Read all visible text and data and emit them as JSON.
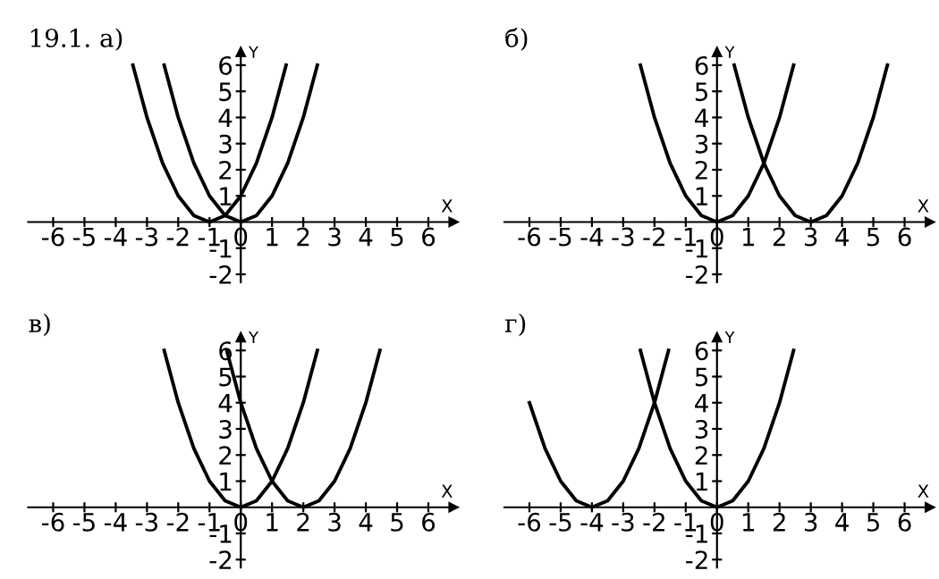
{
  "chart_data": [
    {
      "type": "line",
      "title": "19.1. а)",
      "xlabel": "X",
      "ylabel": "Y",
      "xlim": [
        -6.8,
        6.8
      ],
      "ylim": [
        -2.3,
        6.5
      ],
      "xticks": [
        -6,
        -5,
        -4,
        -3,
        -2,
        -1,
        0,
        1,
        2,
        3,
        4,
        5,
        6
      ],
      "yticks": [
        -2,
        -1,
        1,
        2,
        3,
        4,
        5,
        6
      ],
      "grid": false,
      "legend": false,
      "series": [
        {
          "color": "#000000",
          "x": [
            -3.45,
            -3,
            -2.5,
            -2,
            -1.5,
            -1,
            -0.5,
            0,
            0.5,
            1,
            1.45
          ],
          "values": [
            6.0,
            4,
            2.25,
            1,
            0.25,
            0,
            0.25,
            1,
            2.25,
            4,
            6.0
          ]
        },
        {
          "color": "#000000",
          "x": [
            -2.45,
            -2,
            -1.5,
            -1,
            -0.5,
            0,
            0.5,
            1,
            1.5,
            2,
            2.45
          ],
          "values": [
            6.0,
            4,
            2.25,
            1,
            0.25,
            0,
            0.25,
            1,
            2.25,
            4,
            6.0
          ]
        }
      ]
    },
    {
      "type": "line",
      "title": "б)",
      "xlabel": "X",
      "ylabel": "Y",
      "xlim": [
        -6.8,
        6.8
      ],
      "ylim": [
        -2.3,
        6.5
      ],
      "xticks": [
        -6,
        -5,
        -4,
        -3,
        -2,
        -1,
        0,
        1,
        2,
        3,
        4,
        5,
        6
      ],
      "yticks": [
        -2,
        -1,
        1,
        2,
        3,
        4,
        5,
        6
      ],
      "grid": false,
      "legend": false,
      "series": [
        {
          "color": "#000000",
          "x": [
            -2.45,
            -2,
            -1.5,
            -1,
            -0.5,
            0,
            0.5,
            1,
            1.5,
            2,
            2.45
          ],
          "values": [
            6.0,
            4,
            2.25,
            1,
            0.25,
            0,
            0.25,
            1,
            2.25,
            4,
            6.0
          ]
        },
        {
          "color": "#000000",
          "x": [
            0.55,
            1,
            1.5,
            2,
            2.5,
            3,
            3.5,
            4,
            4.5,
            5,
            5.45
          ],
          "values": [
            6.0,
            4,
            2.25,
            1,
            0.25,
            0,
            0.25,
            1,
            2.25,
            4,
            6.0
          ]
        }
      ]
    },
    {
      "type": "line",
      "title": "в)",
      "xlabel": "X",
      "ylabel": "Y",
      "xlim": [
        -6.8,
        6.8
      ],
      "ylim": [
        -2.3,
        6.5
      ],
      "xticks": [
        -6,
        -5,
        -4,
        -3,
        -2,
        -1,
        0,
        1,
        2,
        3,
        4,
        5,
        6
      ],
      "yticks": [
        -2,
        -1,
        1,
        2,
        3,
        4,
        5,
        6
      ],
      "grid": false,
      "legend": false,
      "series": [
        {
          "color": "#000000",
          "x": [
            -2.45,
            -2,
            -1.5,
            -1,
            -0.5,
            0,
            0.5,
            1,
            1.5,
            2,
            2.45
          ],
          "values": [
            6.0,
            4,
            2.25,
            1,
            0.25,
            0,
            0.25,
            1,
            2.25,
            4,
            6.0
          ]
        },
        {
          "color": "#000000",
          "x": [
            -0.45,
            0,
            0.5,
            1,
            1.5,
            2,
            2.5,
            3,
            3.5,
            4,
            4.45
          ],
          "values": [
            6.0,
            4,
            2.25,
            1,
            0.25,
            0,
            0.25,
            1,
            2.25,
            4,
            6.0
          ]
        }
      ]
    },
    {
      "type": "line",
      "title": "г)",
      "xlabel": "X",
      "ylabel": "Y",
      "xlim": [
        -6.8,
        6.8
      ],
      "ylim": [
        -2.3,
        6.5
      ],
      "xticks": [
        -6,
        -5,
        -4,
        -3,
        -2,
        -1,
        0,
        1,
        2,
        3,
        4,
        5,
        6
      ],
      "yticks": [
        -2,
        -1,
        1,
        2,
        3,
        4,
        5,
        6
      ],
      "grid": false,
      "legend": false,
      "series": [
        {
          "color": "#000000",
          "x": [
            -6,
            -5.5,
            -5,
            -4.5,
            -4,
            -3.5,
            -3,
            -2.5,
            -2,
            -1.55
          ],
          "values": [
            4,
            2.25,
            1,
            0.25,
            0,
            0.25,
            1,
            2.25,
            4,
            6.0
          ]
        },
        {
          "color": "#000000",
          "x": [
            -2.45,
            -2,
            -1.5,
            -1,
            -0.5,
            0,
            0.5,
            1,
            1.5,
            2,
            2.45
          ],
          "values": [
            6.0,
            4,
            2.25,
            1,
            0.25,
            0,
            0.25,
            1,
            2.25,
            4,
            6.0
          ]
        }
      ]
    }
  ]
}
